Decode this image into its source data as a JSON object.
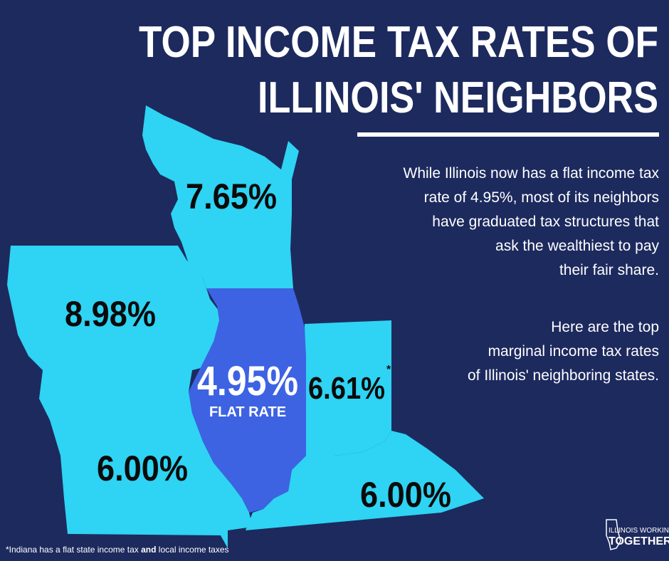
{
  "header": {
    "title_lines": [
      "TOP INCOME TAX RATES OF",
      "ILLINOIS' NEIGHBORS"
    ]
  },
  "description": {
    "paragraphs": [
      [
        "While Illinois now has a flat income tax",
        "rate of 4.95%, most of its neighbors",
        "have graduated tax structures that",
        "ask the wealthiest to pay",
        "their fair share."
      ],
      [
        "Here are the top",
        "marginal income tax rates",
        "of Illinois' neighboring states."
      ]
    ]
  },
  "map": {
    "states": [
      {
        "rate": "7.65%"
      },
      {
        "rate": "8.98%"
      },
      {
        "rate": "4.95%",
        "note": "FLAT RATE"
      },
      {
        "rate": "6.61%",
        "mark": "*"
      },
      {
        "rate": "6.00%"
      },
      {
        "rate": "6.00%"
      }
    ]
  },
  "footnote": {
    "parts": [
      "*Indiana has a flat state income tax ",
      "and",
      " local income taxes"
    ]
  },
  "logo": {
    "lines": [
      "ILLINOIS WORKING",
      "TOGETHER"
    ]
  }
}
